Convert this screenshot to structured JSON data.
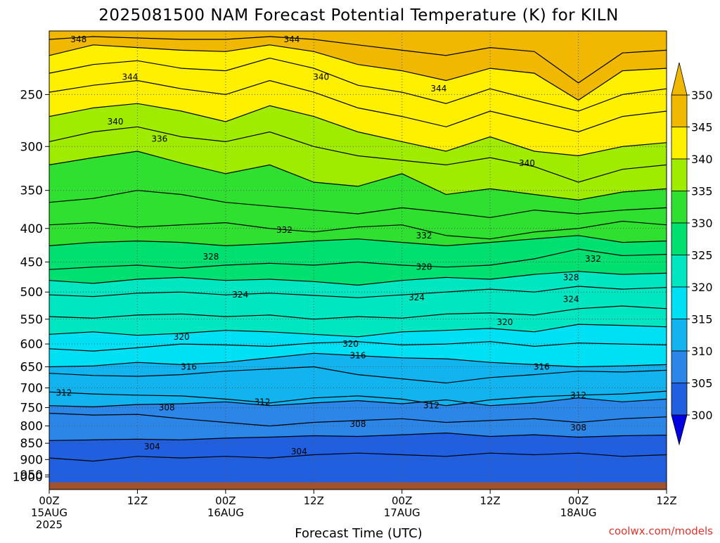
{
  "title": "2025081500 NAM Forecast Potential Temperature (K) for KILN",
  "credit": "coolwx.com/models",
  "colors": {
    "terrain": "#a0522d",
    "contour_line": "#000000",
    "credit": "#e0332a"
  },
  "chart_data": {
    "type": "heatmap",
    "title": "2025081500 NAM Forecast Potential Temperature (K) for KILN",
    "xlabel": "Forecast Time (UTC)",
    "ylabel": "",
    "y_scale": "log",
    "y_inverted": true,
    "ylim": [
      1000,
      200
    ],
    "xlim": [
      0,
      84
    ],
    "x_units": "forecast hours",
    "grid": true,
    "legend": "colorbar-right",
    "y_ticks": [
      250,
      300,
      350,
      400,
      450,
      500,
      550,
      600,
      650,
      700,
      750,
      800,
      850,
      900,
      950,
      1000
    ],
    "x_ticks": [
      {
        "hour": 0,
        "line1": "00Z",
        "line2": "15AUG",
        "line3": "2025"
      },
      {
        "hour": 12,
        "line1": "12Z",
        "line2": "",
        "line3": ""
      },
      {
        "hour": 24,
        "line1": "00Z",
        "line2": "16AUG",
        "line3": ""
      },
      {
        "hour": 36,
        "line1": "12Z",
        "line2": "",
        "line3": ""
      },
      {
        "hour": 48,
        "line1": "00Z",
        "line2": "17AUG",
        "line3": ""
      },
      {
        "hour": 60,
        "line1": "12Z",
        "line2": "",
        "line3": ""
      },
      {
        "hour": 72,
        "line1": "00Z",
        "line2": "18AUG",
        "line3": ""
      },
      {
        "hour": 84,
        "line1": "12Z",
        "line2": "",
        "line3": ""
      }
    ],
    "colorbar": {
      "levels": [
        300,
        305,
        310,
        315,
        320,
        325,
        330,
        335,
        340,
        345,
        350
      ],
      "labels": [
        "300",
        "305",
        "310",
        "315",
        "320",
        "325",
        "330",
        "335",
        "340",
        "345",
        "350"
      ],
      "colors": [
        "#0000e0",
        "#1f5fe0",
        "#2b86e8",
        "#12b4f0",
        "#00e0f4",
        "#00e6c0",
        "#00e070",
        "#30e030",
        "#a0ec00",
        "#fff000",
        "#f0b800"
      ],
      "extend": "both"
    },
    "contour_interval": 2,
    "contours": [
      {
        "level": 304,
        "p": [
          895,
          905,
          890,
          895,
          890,
          895,
          885,
          880,
          885,
          890,
          880,
          885,
          880,
          890,
          885
        ]
      },
      {
        "level": 306,
        "p": [
          842,
          840,
          838,
          840,
          835,
          832,
          828,
          830,
          825,
          820,
          830,
          825,
          832,
          828,
          826
        ]
      },
      {
        "level": 308,
        "p": [
          765,
          770,
          768,
          780,
          790,
          800,
          790,
          785,
          780,
          790,
          785,
          780,
          790,
          780,
          775
        ]
      },
      {
        "level": 310,
        "p": [
          745,
          748,
          742,
          740,
          735,
          745,
          738,
          732,
          740,
          730,
          745,
          738,
          725,
          735,
          728
        ]
      },
      {
        "level": 312,
        "p": [
          710,
          715,
          718,
          720,
          728,
          738,
          725,
          720,
          728,
          745,
          730,
          722,
          718,
          715,
          708
        ]
      },
      {
        "level": 314,
        "p": [
          665,
          670,
          672,
          668,
          660,
          655,
          650,
          668,
          678,
          688,
          675,
          668,
          660,
          662,
          658
        ]
      },
      {
        "level": 316,
        "p": [
          650,
          648,
          640,
          645,
          640,
          630,
          620,
          625,
          630,
          632,
          640,
          645,
          650,
          648,
          645
        ]
      },
      {
        "level": 318,
        "p": [
          610,
          615,
          608,
          600,
          602,
          605,
          598,
          595,
          602,
          600,
          595,
          605,
          598,
          600,
          602
        ]
      },
      {
        "level": 320,
        "p": [
          580,
          575,
          582,
          578,
          572,
          575,
          580,
          585,
          575,
          572,
          568,
          575,
          560,
          562,
          565
        ]
      },
      {
        "level": 322,
        "p": [
          545,
          548,
          542,
          540,
          545,
          542,
          550,
          545,
          548,
          540,
          538,
          542,
          530,
          525,
          530
        ]
      },
      {
        "level": 324,
        "p": [
          505,
          508,
          502,
          500,
          505,
          502,
          506,
          510,
          505,
          500,
          495,
          500,
          490,
          495,
          492
        ]
      },
      {
        "level": 326,
        "p": [
          480,
          485,
          478,
          475,
          480,
          478,
          482,
          488,
          480,
          475,
          478,
          470,
          465,
          470,
          468
        ]
      },
      {
        "level": 328,
        "p": [
          462,
          458,
          455,
          460,
          455,
          452,
          455,
          450,
          455,
          458,
          455,
          445,
          430,
          440,
          438
        ]
      },
      {
        "level": 330,
        "p": [
          425,
          420,
          418,
          420,
          425,
          422,
          418,
          415,
          420,
          425,
          420,
          415,
          410,
          420,
          418
        ]
      },
      {
        "level": 332,
        "p": [
          395,
          392,
          398,
          395,
          392,
          400,
          405,
          398,
          395,
          410,
          415,
          405,
          400,
          390,
          395
        ]
      },
      {
        "level": 334,
        "p": [
          365,
          360,
          350,
          355,
          365,
          370,
          375,
          380,
          372,
          378,
          385,
          375,
          380,
          375,
          372
        ]
      },
      {
        "level": 336,
        "p": [
          320,
          312,
          305,
          318,
          330,
          320,
          340,
          345,
          330,
          355,
          348,
          355,
          362,
          352,
          348
        ]
      },
      {
        "level": 338,
        "p": [
          295,
          285,
          280,
          290,
          295,
          285,
          300,
          310,
          315,
          320,
          312,
          322,
          340,
          325,
          320
        ]
      },
      {
        "level": 340,
        "p": [
          270,
          262,
          258,
          265,
          275,
          260,
          270,
          285,
          295,
          305,
          290,
          305,
          310,
          300,
          296
        ]
      },
      {
        "level": 342,
        "p": [
          248,
          242,
          238,
          245,
          250,
          238,
          248,
          262,
          270,
          280,
          265,
          275,
          285,
          270,
          265
        ]
      },
      {
        "level": 344,
        "p": [
          232,
          225,
          222,
          228,
          230,
          220,
          228,
          242,
          248,
          258,
          245,
          255,
          265,
          250,
          245
        ]
      },
      {
        "level": 346,
        "p": [
          218,
          210,
          212,
          214,
          215,
          210,
          215,
          225,
          230,
          238,
          228,
          232,
          255,
          230,
          228
        ]
      },
      {
        "level": 348,
        "p": [
          206,
          204,
          205,
          206,
          206,
          204,
          206,
          210,
          214,
          218,
          212,
          215,
          240,
          216,
          214
        ]
      }
    ],
    "contour_labels": [
      {
        "text": "348",
        "hour": 4,
        "p": 206
      },
      {
        "text": "344",
        "hour": 33,
        "p": 206
      },
      {
        "text": "344",
        "hour": 11,
        "p": 235
      },
      {
        "text": "340",
        "hour": 37,
        "p": 235
      },
      {
        "text": "344",
        "hour": 53,
        "p": 245
      },
      {
        "text": "340",
        "hour": 9,
        "p": 275
      },
      {
        "text": "336",
        "hour": 15,
        "p": 292
      },
      {
        "text": "340",
        "hour": 65,
        "p": 318
      },
      {
        "text": "332",
        "hour": 32,
        "p": 402
      },
      {
        "text": "332",
        "hour": 51,
        "p": 410
      },
      {
        "text": "328",
        "hour": 22,
        "p": 442
      },
      {
        "text": "328",
        "hour": 51,
        "p": 458
      },
      {
        "text": "332",
        "hour": 74,
        "p": 445
      },
      {
        "text": "328",
        "hour": 71,
        "p": 475
      },
      {
        "text": "324",
        "hour": 26,
        "p": 505
      },
      {
        "text": "324",
        "hour": 50,
        "p": 510
      },
      {
        "text": "324",
        "hour": 71,
        "p": 513
      },
      {
        "text": "320",
        "hour": 62,
        "p": 556
      },
      {
        "text": "320",
        "hour": 18,
        "p": 585
      },
      {
        "text": "320",
        "hour": 41,
        "p": 600
      },
      {
        "text": "316",
        "hour": 42,
        "p": 625
      },
      {
        "text": "316",
        "hour": 19,
        "p": 650
      },
      {
        "text": "316",
        "hour": 67,
        "p": 650
      },
      {
        "text": "312",
        "hour": 2,
        "p": 712
      },
      {
        "text": "312",
        "hour": 29,
        "p": 735
      },
      {
        "text": "312",
        "hour": 72,
        "p": 718
      },
      {
        "text": "312",
        "hour": 52,
        "p": 745
      },
      {
        "text": "308",
        "hour": 16,
        "p": 750
      },
      {
        "text": "308",
        "hour": 42,
        "p": 795
      },
      {
        "text": "308",
        "hour": 72,
        "p": 805
      },
      {
        "text": "304",
        "hour": 14,
        "p": 860
      },
      {
        "text": "304",
        "hour": 34,
        "p": 875
      }
    ]
  }
}
